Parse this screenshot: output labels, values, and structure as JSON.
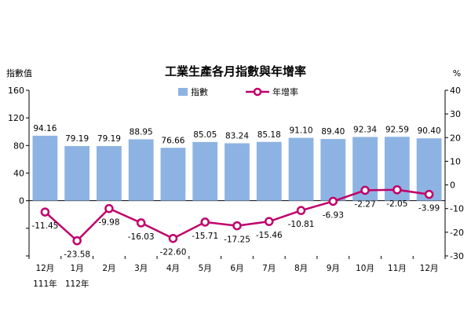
{
  "chart_data": {
    "type": "bar",
    "title": "工業生產各月指數與年增率",
    "ylabel_left": "指數值",
    "ylabel_right": "%",
    "categories": [
      "12月",
      "1月",
      "2月",
      "3月",
      "4月",
      "5月",
      "6月",
      "7月",
      "8月",
      "9月",
      "10月",
      "11月",
      "12月"
    ],
    "category_sublabels": [
      "111年",
      "112年",
      "",
      "",
      "",
      "",
      "",
      "",
      "",
      "",
      "",
      "",
      ""
    ],
    "series": [
      {
        "name": "指數",
        "type": "bar",
        "axis": "left",
        "color": "#8db3e2",
        "values": [
          94.16,
          79.19,
          79.19,
          88.95,
          76.66,
          85.05,
          83.24,
          85.18,
          91.1,
          89.4,
          92.34,
          92.59,
          90.4
        ],
        "labels": [
          "94.16",
          "79.19",
          "79.19",
          "88.95",
          "76.66",
          "85.05",
          "83.24",
          "85.18",
          "91.10",
          "89.40",
          "92.34",
          "92.59",
          "90.40"
        ]
      },
      {
        "name": "年增率",
        "type": "line",
        "axis": "right",
        "color": "#c0006a",
        "values": [
          -11.45,
          -23.58,
          -9.98,
          -16.03,
          -22.6,
          -15.71,
          -17.25,
          -15.46,
          -10.81,
          -6.93,
          -2.27,
          -2.05,
          -3.99
        ],
        "labels": [
          "-11.45",
          "-23.58",
          "-9.98",
          "-16.03",
          "-22.60",
          "-15.71",
          "-17.25",
          "-15.46",
          "-10.81",
          "-6.93",
          "-2.27",
          "-2.05",
          "-3.99"
        ]
      }
    ],
    "ylim_left": [
      -80,
      160
    ],
    "yticks_left": [
      {
        "value": 0,
        "label": "0"
      },
      {
        "value": 40,
        "label": "40"
      },
      {
        "value": 80,
        "label": "80"
      },
      {
        "value": 120,
        "label": "120"
      },
      {
        "value": 160,
        "label": "160"
      }
    ],
    "ylim_right": [
      -30,
      40
    ],
    "yticks_right": [
      {
        "value": -30,
        "label": "-30"
      },
      {
        "value": -20,
        "label": "-20"
      },
      {
        "value": -10,
        "label": "-10"
      },
      {
        "value": 0,
        "label": "0"
      },
      {
        "value": 10,
        "label": "10"
      },
      {
        "value": 20,
        "label": "20"
      },
      {
        "value": 30,
        "label": "30"
      },
      {
        "value": 40,
        "label": "40"
      }
    ],
    "legend": "top-center",
    "grid": false
  }
}
